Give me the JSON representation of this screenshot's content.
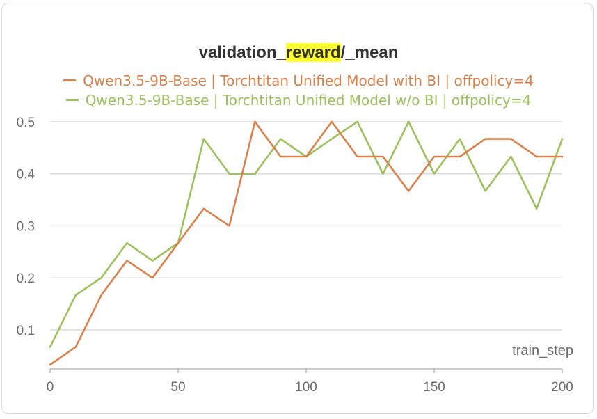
{
  "chart_data": {
    "type": "line",
    "title_parts": [
      "validation_",
      "reward",
      "/_mean"
    ],
    "xlabel": "train_step",
    "ylabel": "",
    "xlim": [
      0,
      200
    ],
    "ylim": [
      0.025,
      0.52
    ],
    "x_ticks": [
      0,
      50,
      100,
      150,
      200
    ],
    "y_ticks": [
      0.1,
      0.2,
      0.3,
      0.4,
      0.5
    ],
    "x_tick_labels": [
      "0",
      "50",
      "100",
      "150",
      "200"
    ],
    "y_tick_labels": [
      "0.1",
      "0.2",
      "0.3",
      "0.4",
      "0.5"
    ],
    "grid": "horizontal",
    "legend_position": "top",
    "x": [
      0,
      10,
      20,
      30,
      40,
      50,
      60,
      70,
      80,
      90,
      100,
      110,
      120,
      130,
      140,
      150,
      160,
      170,
      180,
      190,
      200
    ],
    "series": [
      {
        "name": "Qwen3.5-9B-Base | Torchtitan Unified Model with BI | offpolicy=4",
        "color": "#d9814a",
        "values": [
          0.033,
          0.067,
          0.167,
          0.233,
          0.2,
          0.267,
          0.333,
          0.3,
          0.5,
          0.433,
          0.433,
          0.5,
          0.433,
          0.433,
          0.367,
          0.433,
          0.433,
          0.467,
          0.467,
          0.433,
          0.433
        ]
      },
      {
        "name": "Qwen3.5-9B-Base | Torchtitan Unified Model w/o BI | offpolicy=4",
        "color": "#9cc15d",
        "values": [
          0.067,
          0.167,
          0.2,
          0.267,
          0.233,
          0.267,
          0.467,
          0.4,
          0.4,
          0.467,
          0.433,
          0.467,
          0.5,
          0.4,
          0.5,
          0.4,
          0.467,
          0.367,
          0.433,
          0.333,
          0.467
        ]
      }
    ]
  }
}
